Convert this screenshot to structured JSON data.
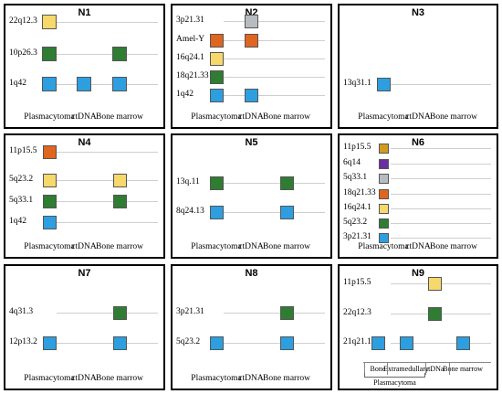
{
  "colors": {
    "yellow": "#f7d86b",
    "green": "#2e7d32",
    "blue": "#2d9fe0",
    "orange": "#e0651e",
    "gray": "#b7bcc2",
    "purple": "#6a2fa1",
    "gold": "#d29a1f"
  },
  "columns": [
    "Plasmacytoma",
    "ctDNA",
    "Bone marrow"
  ],
  "panels": [
    {
      "id": "N1",
      "title": "N1",
      "rows": [
        {
          "label": "22q12.3",
          "marks": [
            {
              "col": 0,
              "color": "yellow"
            }
          ]
        },
        {
          "label": "10p26.3",
          "marks": [
            {
              "col": 0,
              "color": "green"
            },
            {
              "col": 2,
              "color": "green"
            }
          ]
        },
        {
          "label": "1q42",
          "marks": [
            {
              "col": 0,
              "color": "blue"
            },
            {
              "col": 1,
              "color": "blue"
            },
            {
              "col": 2,
              "color": "blue"
            }
          ]
        }
      ]
    },
    {
      "id": "N2",
      "title": "N2",
      "rows": [
        {
          "label": "3p21.31",
          "marks": [
            {
              "col": 1,
              "color": "gray"
            }
          ]
        },
        {
          "label": "Amel-Y",
          "marks": [
            {
              "col": 0,
              "color": "orange"
            },
            {
              "col": 1,
              "color": "orange"
            }
          ]
        },
        {
          "label": "16q24.1",
          "marks": [
            {
              "col": 0,
              "color": "yellow"
            }
          ]
        },
        {
          "label": "18q21.33",
          "marks": [
            {
              "col": 0,
              "color": "green"
            }
          ]
        },
        {
          "label": "1q42",
          "marks": [
            {
              "col": 0,
              "color": "blue"
            },
            {
              "col": 1,
              "color": "blue"
            }
          ]
        }
      ]
    },
    {
      "id": "N3",
      "title": "N3",
      "rows": [
        {
          "label": "13q31.1",
          "marks": [
            {
              "col": 0,
              "color": "blue"
            }
          ]
        }
      ]
    },
    {
      "id": "N4",
      "title": "N4",
      "rows": [
        {
          "label": "11p15.5",
          "marks": [
            {
              "col": 0,
              "color": "orange"
            }
          ]
        },
        {
          "label": "5q23.2",
          "marks": [
            {
              "col": 0,
              "color": "yellow"
            },
            {
              "col": 2,
              "color": "yellow"
            }
          ]
        },
        {
          "label": "5q33.1",
          "marks": [
            {
              "col": 0,
              "color": "green"
            },
            {
              "col": 2,
              "color": "green"
            }
          ]
        },
        {
          "label": "1q42",
          "marks": [
            {
              "col": 0,
              "color": "blue"
            }
          ]
        }
      ]
    },
    {
      "id": "N5",
      "title": "N5",
      "rows": [
        {
          "label": "13q.11",
          "marks": [
            {
              "col": 0,
              "color": "green"
            },
            {
              "col": 2,
              "color": "green"
            }
          ]
        },
        {
          "label": "8q24.13",
          "marks": [
            {
              "col": 0,
              "color": "blue"
            },
            {
              "col": 2,
              "color": "blue"
            }
          ]
        }
      ]
    },
    {
      "id": "N6",
      "title": "N6",
      "rows": [
        {
          "label": "11p15.5",
          "marks": [
            {
              "col": 0,
              "color": "gold"
            }
          ]
        },
        {
          "label": "6q14",
          "marks": [
            {
              "col": 0,
              "color": "purple"
            }
          ]
        },
        {
          "label": "5q33.1",
          "marks": [
            {
              "col": 0,
              "color": "gray"
            }
          ]
        },
        {
          "label": "18q21.33",
          "marks": [
            {
              "col": 0,
              "color": "orange"
            }
          ]
        },
        {
          "label": "16q24.1",
          "marks": [
            {
              "col": 0,
              "color": "yellow"
            }
          ]
        },
        {
          "label": "5q23.2",
          "marks": [
            {
              "col": 0,
              "color": "green"
            }
          ]
        },
        {
          "label": "3p21.31",
          "marks": [
            {
              "col": 0,
              "color": "blue"
            }
          ]
        }
      ]
    },
    {
      "id": "N7",
      "title": "N7",
      "rows": [
        {
          "label": "4q31.3",
          "marks": [
            {
              "col": 2,
              "color": "green"
            }
          ]
        },
        {
          "label": "12p13.2",
          "marks": [
            {
              "col": 0,
              "color": "blue"
            },
            {
              "col": 2,
              "color": "blue"
            }
          ]
        }
      ]
    },
    {
      "id": "N8",
      "title": "N8",
      "rows": [
        {
          "label": "3p21.31",
          "marks": [
            {
              "col": 2,
              "color": "green"
            }
          ]
        },
        {
          "label": "5q23.2",
          "marks": [
            {
              "col": 0,
              "color": "blue"
            },
            {
              "col": 2,
              "color": "blue"
            }
          ]
        }
      ]
    },
    {
      "id": "N9",
      "title": "N9",
      "rows": [
        {
          "label": "11p15.5",
          "marks": [
            {
              "col": 2,
              "color": "yellow"
            }
          ]
        },
        {
          "label": "22q12.3",
          "marks": [
            {
              "col": 2,
              "color": "green"
            }
          ]
        },
        {
          "label": "21q21.1",
          "marks": [
            {
              "col": 0,
              "color": "blue"
            },
            {
              "col": 1,
              "color": "blue"
            },
            {
              "col": 3,
              "color": "blue"
            }
          ]
        }
      ],
      "columns": [
        "Bone",
        "Extramedullary",
        "ctDNa",
        "Bone marrow"
      ],
      "group_label": "Plasmacytoma"
    }
  ]
}
